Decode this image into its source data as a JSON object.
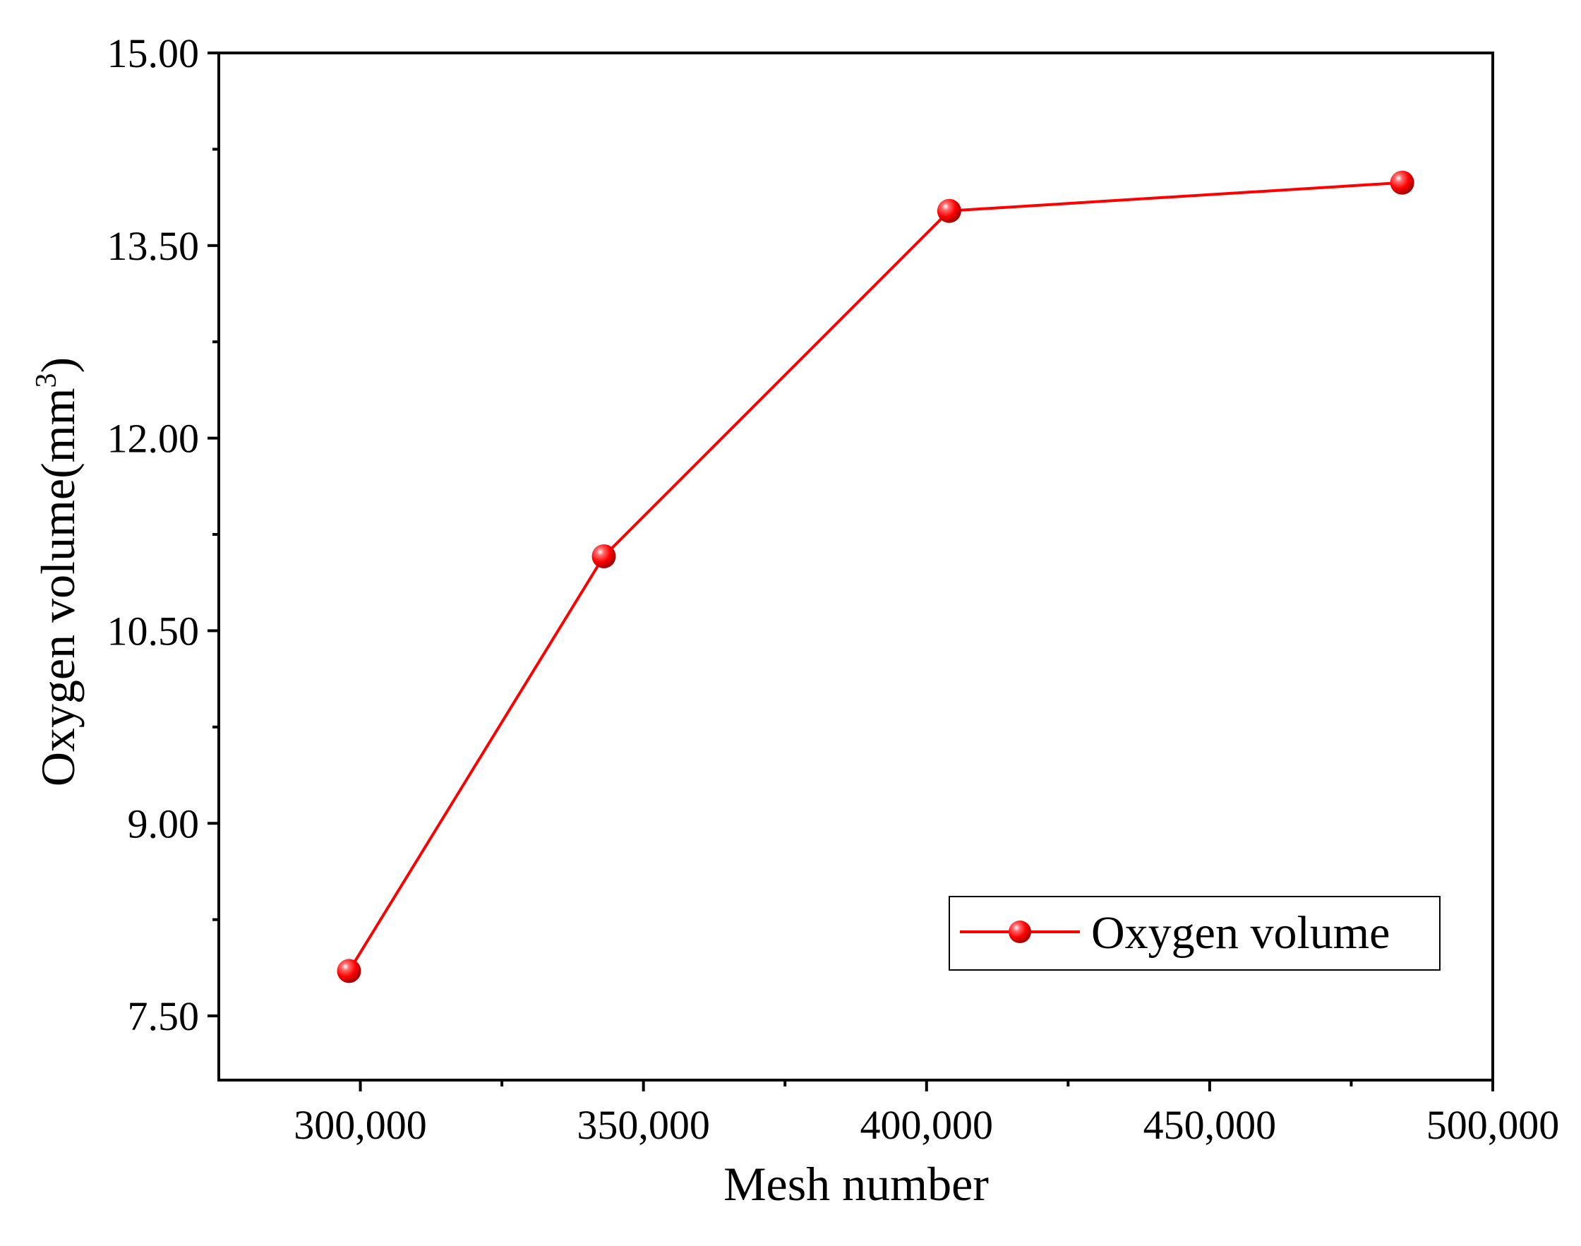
{
  "chart_data": {
    "type": "line",
    "title": "",
    "xlabel": "Mesh number",
    "ylabel": {
      "main": "Oxygen volume(mm",
      "sup": "3",
      "close": ")"
    },
    "xlim": [
      275000,
      500000
    ],
    "ylim": [
      7.0,
      15.0
    ],
    "x_ticks": [
      300000,
      350000,
      400000,
      450000,
      500000
    ],
    "x_tick_labels": [
      "300,000",
      "350,000",
      "400,000",
      "450,000",
      "500,000"
    ],
    "y_ticks": [
      7.5,
      9.0,
      10.5,
      12.0,
      13.5,
      15.0
    ],
    "y_tick_labels": [
      "7.50",
      "9.00",
      "10.50",
      "12.00",
      "13.50",
      "15.00"
    ],
    "y_minor_ticks": [
      8.25,
      9.75,
      11.25,
      12.75,
      14.25
    ],
    "x_minor_ticks": [
      325000,
      375000,
      425000,
      475000
    ],
    "grid": false,
    "legend_position": "bottom-right",
    "series": [
      {
        "name": "Oxygen volume",
        "color": "#ff0000",
        "marker": "sphere",
        "x": [
          298000,
          343000,
          404000,
          484000
        ],
        "y": [
          7.85,
          11.08,
          13.77,
          13.99
        ]
      }
    ]
  }
}
